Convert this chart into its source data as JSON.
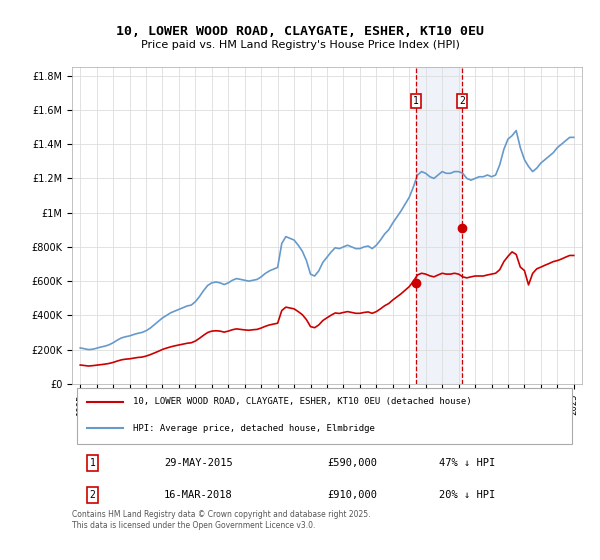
{
  "title": "10, LOWER WOOD ROAD, CLAYGATE, ESHER, KT10 0EU",
  "subtitle": "Price paid vs. HM Land Registry's House Price Index (HPI)",
  "legend_line1": "10, LOWER WOOD ROAD, CLAYGATE, ESHER, KT10 0EU (detached house)",
  "legend_line2": "HPI: Average price, detached house, Elmbridge",
  "red_color": "#cc0000",
  "blue_color": "#6699cc",
  "transaction1_date": "29-MAY-2015",
  "transaction1_price": 590000,
  "transaction1_label": "47% ↓ HPI",
  "transaction2_date": "16-MAR-2018",
  "transaction2_price": 910000,
  "transaction2_label": "20% ↓ HPI",
  "footer": "Contains HM Land Registry data © Crown copyright and database right 2025.\nThis data is licensed under the Open Government Licence v3.0.",
  "hpi_data": {
    "dates": [
      1995.0,
      1995.25,
      1995.5,
      1995.75,
      1996.0,
      1996.25,
      1996.5,
      1996.75,
      1997.0,
      1997.25,
      1997.5,
      1997.75,
      1998.0,
      1998.25,
      1998.5,
      1998.75,
      1999.0,
      1999.25,
      1999.5,
      1999.75,
      2000.0,
      2000.25,
      2000.5,
      2000.75,
      2001.0,
      2001.25,
      2001.5,
      2001.75,
      2002.0,
      2002.25,
      2002.5,
      2002.75,
      2003.0,
      2003.25,
      2003.5,
      2003.75,
      2004.0,
      2004.25,
      2004.5,
      2004.75,
      2005.0,
      2005.25,
      2005.5,
      2005.75,
      2006.0,
      2006.25,
      2006.5,
      2006.75,
      2007.0,
      2007.25,
      2007.5,
      2007.75,
      2008.0,
      2008.25,
      2008.5,
      2008.75,
      2009.0,
      2009.25,
      2009.5,
      2009.75,
      2010.0,
      2010.25,
      2010.5,
      2010.75,
      2011.0,
      2011.25,
      2011.5,
      2011.75,
      2012.0,
      2012.25,
      2012.5,
      2012.75,
      2013.0,
      2013.25,
      2013.5,
      2013.75,
      2014.0,
      2014.25,
      2014.5,
      2014.75,
      2015.0,
      2015.25,
      2015.5,
      2015.75,
      2016.0,
      2016.25,
      2016.5,
      2016.75,
      2017.0,
      2017.25,
      2017.5,
      2017.75,
      2018.0,
      2018.25,
      2018.5,
      2018.75,
      2019.0,
      2019.25,
      2019.5,
      2019.75,
      2020.0,
      2020.25,
      2020.5,
      2020.75,
      2021.0,
      2021.25,
      2021.5,
      2021.75,
      2022.0,
      2022.25,
      2022.5,
      2022.75,
      2023.0,
      2023.25,
      2023.5,
      2023.75,
      2024.0,
      2024.25,
      2024.5,
      2024.75,
      2025.0
    ],
    "values": [
      210000,
      205000,
      200000,
      202000,
      208000,
      215000,
      220000,
      228000,
      240000,
      255000,
      268000,
      275000,
      280000,
      288000,
      295000,
      300000,
      310000,
      325000,
      345000,
      365000,
      385000,
      400000,
      415000,
      425000,
      435000,
      445000,
      455000,
      460000,
      480000,
      510000,
      545000,
      575000,
      590000,
      595000,
      590000,
      580000,
      590000,
      605000,
      615000,
      610000,
      605000,
      600000,
      605000,
      610000,
      625000,
      645000,
      660000,
      670000,
      680000,
      820000,
      860000,
      850000,
      840000,
      810000,
      775000,
      720000,
      640000,
      630000,
      660000,
      710000,
      740000,
      770000,
      795000,
      790000,
      800000,
      810000,
      800000,
      790000,
      790000,
      800000,
      805000,
      790000,
      810000,
      840000,
      875000,
      900000,
      940000,
      975000,
      1010000,
      1050000,
      1090000,
      1150000,
      1220000,
      1240000,
      1230000,
      1210000,
      1200000,
      1220000,
      1240000,
      1230000,
      1230000,
      1240000,
      1240000,
      1230000,
      1200000,
      1190000,
      1200000,
      1210000,
      1210000,
      1220000,
      1210000,
      1220000,
      1280000,
      1370000,
      1430000,
      1450000,
      1480000,
      1380000,
      1310000,
      1270000,
      1240000,
      1260000,
      1290000,
      1310000,
      1330000,
      1350000,
      1380000,
      1400000,
      1420000,
      1440000,
      1440000
    ]
  },
  "hpi_scaled_data": {
    "dates": [
      1995.0,
      1995.25,
      1995.5,
      1995.75,
      1996.0,
      1996.25,
      1996.5,
      1996.75,
      1997.0,
      1997.25,
      1997.5,
      1997.75,
      1998.0,
      1998.25,
      1998.5,
      1998.75,
      1999.0,
      1999.25,
      1999.5,
      1999.75,
      2000.0,
      2000.25,
      2000.5,
      2000.75,
      2001.0,
      2001.25,
      2001.5,
      2001.75,
      2002.0,
      2002.25,
      2002.5,
      2002.75,
      2003.0,
      2003.25,
      2003.5,
      2003.75,
      2004.0,
      2004.25,
      2004.5,
      2004.75,
      2005.0,
      2005.25,
      2005.5,
      2005.75,
      2006.0,
      2006.25,
      2006.5,
      2006.75,
      2007.0,
      2007.25,
      2007.5,
      2007.75,
      2008.0,
      2008.25,
      2008.5,
      2008.75,
      2009.0,
      2009.25,
      2009.5,
      2009.75,
      2010.0,
      2010.25,
      2010.5,
      2010.75,
      2011.0,
      2011.25,
      2011.5,
      2011.75,
      2012.0,
      2012.25,
      2012.5,
      2012.75,
      2013.0,
      2013.25,
      2013.5,
      2013.75,
      2014.0,
      2014.25,
      2014.5,
      2014.75,
      2015.0,
      2015.25,
      2015.5,
      2015.75,
      2016.0,
      2016.25,
      2016.5,
      2016.75,
      2017.0,
      2017.25,
      2017.5,
      2017.75,
      2018.0,
      2018.25,
      2018.5,
      2018.75,
      2019.0,
      2019.25,
      2019.5,
      2019.75,
      2020.0,
      2020.25,
      2020.5,
      2020.75,
      2021.0,
      2021.25,
      2021.5,
      2021.75,
      2022.0,
      2022.25,
      2022.5,
      2022.75,
      2023.0,
      2023.25,
      2023.5,
      2023.75,
      2024.0,
      2024.25,
      2024.5,
      2024.75,
      2025.0
    ],
    "values": [
      110000,
      107000,
      104000,
      106000,
      109000,
      112000,
      115000,
      119000,
      125000,
      133000,
      140000,
      144000,
      146000,
      150000,
      154000,
      156000,
      162000,
      170000,
      180000,
      190000,
      201000,
      209000,
      216000,
      222000,
      227000,
      232000,
      237000,
      240000,
      250000,
      266000,
      284000,
      300000,
      308000,
      310000,
      308000,
      302000,
      308000,
      316000,
      321000,
      318000,
      315000,
      313000,
      316000,
      318000,
      326000,
      336000,
      344000,
      349000,
      354000,
      428000,
      448000,
      443000,
      438000,
      422000,
      404000,
      375000,
      334000,
      328000,
      344000,
      370000,
      386000,
      401000,
      414000,
      411000,
      417000,
      422000,
      417000,
      412000,
      412000,
      417000,
      420000,
      412000,
      422000,
      438000,
      456000,
      469000,
      490000,
      508000,
      526000,
      547000,
      568000,
      599000,
      636000,
      646000,
      641000,
      631000,
      625000,
      636000,
      646000,
      641000,
      641000,
      646000,
      641000,
      625000,
      619000,
      625000,
      630000,
      630000,
      630000,
      636000,
      641000,
      646000,
      667000,
      714000,
      745000,
      771000,
      756000,
      682000,
      662000,
      578000,
      645000,
      672000,
      682000,
      693000,
      703000,
      714000,
      720000,
      729000,
      740000,
      750000,
      750000
    ]
  },
  "transaction1_x": 2015.41,
  "transaction2_x": 2018.21,
  "ylim": [
    0,
    1850000
  ],
  "xlim": [
    1994.5,
    2025.5
  ]
}
